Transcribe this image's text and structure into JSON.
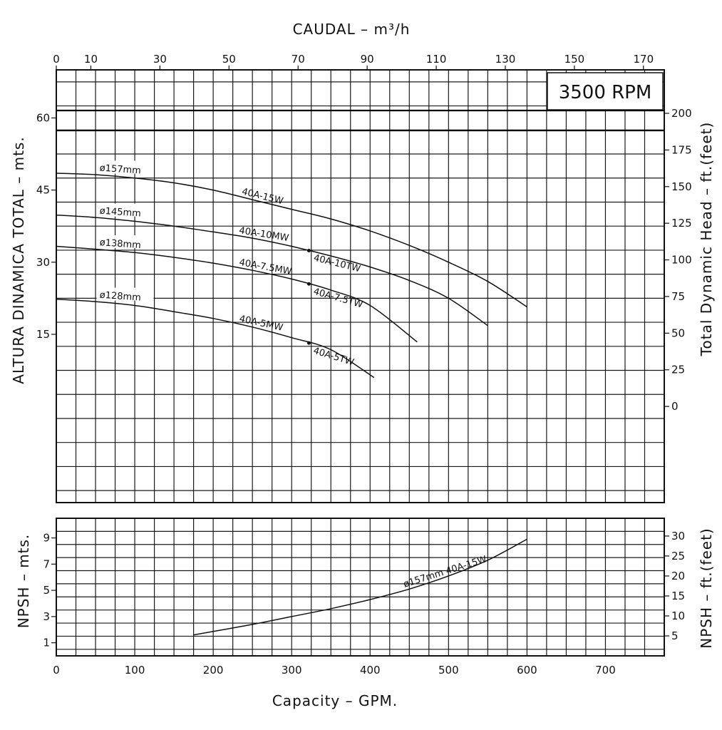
{
  "chart_data": {
    "type": "line",
    "top_axis": {
      "title": "CAUDAL  –  m³/h",
      "ticks": [
        0,
        10,
        30,
        50,
        70,
        90,
        110,
        130,
        150,
        170
      ]
    },
    "bottom_axis": {
      "title": "Capacity  –  GPM.",
      "ticks": [
        0,
        100,
        200,
        300,
        400,
        500,
        600,
        700
      ],
      "range": [
        0,
        775
      ]
    },
    "head_panel": {
      "left_title": "ALTURA  DINAMICA  TOTAL  –  mts.",
      "right_title": "Total Dynamic Head  –  ft.(feet)",
      "left_ticks": [
        15,
        30,
        45,
        60
      ],
      "right_ticks": [
        0,
        25,
        50,
        75,
        100,
        125,
        150,
        175,
        200
      ],
      "range_m": [
        -20,
        70
      ],
      "rpm_label": "3500 RPM",
      "series": [
        {
          "diameter": "ø157mm",
          "model": "40A-15W",
          "models": [],
          "points": [
            [
              0,
              48.5
            ],
            [
              50,
              48.2
            ],
            [
              100,
              47.5
            ],
            [
              150,
              46.5
            ],
            [
              200,
              45
            ],
            [
              250,
              43
            ],
            [
              300,
              41
            ],
            [
              350,
              39
            ],
            [
              400,
              36.5
            ],
            [
              450,
              33.5
            ],
            [
              500,
              30
            ],
            [
              550,
              26
            ],
            [
              600,
              20.7
            ]
          ]
        },
        {
          "diameter": "ø145mm",
          "model": "",
          "models": [
            "40A-10MW",
            "40A-10TW"
          ],
          "points": [
            [
              0,
              39.8
            ],
            [
              50,
              39.3
            ],
            [
              100,
              38.5
            ],
            [
              150,
              37.5
            ],
            [
              200,
              36.3
            ],
            [
              250,
              35
            ],
            [
              300,
              33.3
            ],
            [
              350,
              31.3
            ],
            [
              400,
              29
            ],
            [
              450,
              26.2
            ],
            [
              500,
              22.5
            ],
            [
              550,
              16.8
            ]
          ]
        },
        {
          "diameter": "ø138mm",
          "model": "",
          "models": [
            "40A-7.5MW",
            "40A-7.5TW"
          ],
          "points": [
            [
              0,
              33.3
            ],
            [
              50,
              32.7
            ],
            [
              100,
              32
            ],
            [
              150,
              31
            ],
            [
              200,
              29.8
            ],
            [
              250,
              28.3
            ],
            [
              300,
              26.5
            ],
            [
              350,
              24.2
            ],
            [
              400,
              21
            ],
            [
              460,
              13.4
            ]
          ]
        },
        {
          "diameter": "ø128mm",
          "model": "",
          "models": [
            "40A-5MW",
            "40A-5TW"
          ],
          "points": [
            [
              0,
              22.3
            ],
            [
              50,
              21.8
            ],
            [
              100,
              21
            ],
            [
              150,
              19.7
            ],
            [
              200,
              18.3
            ],
            [
              250,
              16.5
            ],
            [
              300,
              14.3
            ],
            [
              350,
              11.8
            ],
            [
              405,
              6
            ]
          ]
        }
      ]
    },
    "npsh_panel": {
      "left_title": "NPSH  –  mts.",
      "right_title": "NPSH  –  ft.(feet)",
      "left_ticks": [
        1,
        3,
        5,
        7,
        9
      ],
      "right_ticks": [
        5,
        10,
        15,
        20,
        25,
        30
      ],
      "range_m": [
        0,
        10.5
      ],
      "series": [
        {
          "label": "ø157mm 40A-15W",
          "points": [
            [
              175,
              1.6
            ],
            [
              250,
              2.4
            ],
            [
              300,
              3
            ],
            [
              350,
              3.6
            ],
            [
              400,
              4.3
            ],
            [
              450,
              5.1
            ],
            [
              500,
              6.1
            ],
            [
              550,
              7.3
            ],
            [
              600,
              8.9
            ]
          ]
        }
      ]
    }
  }
}
